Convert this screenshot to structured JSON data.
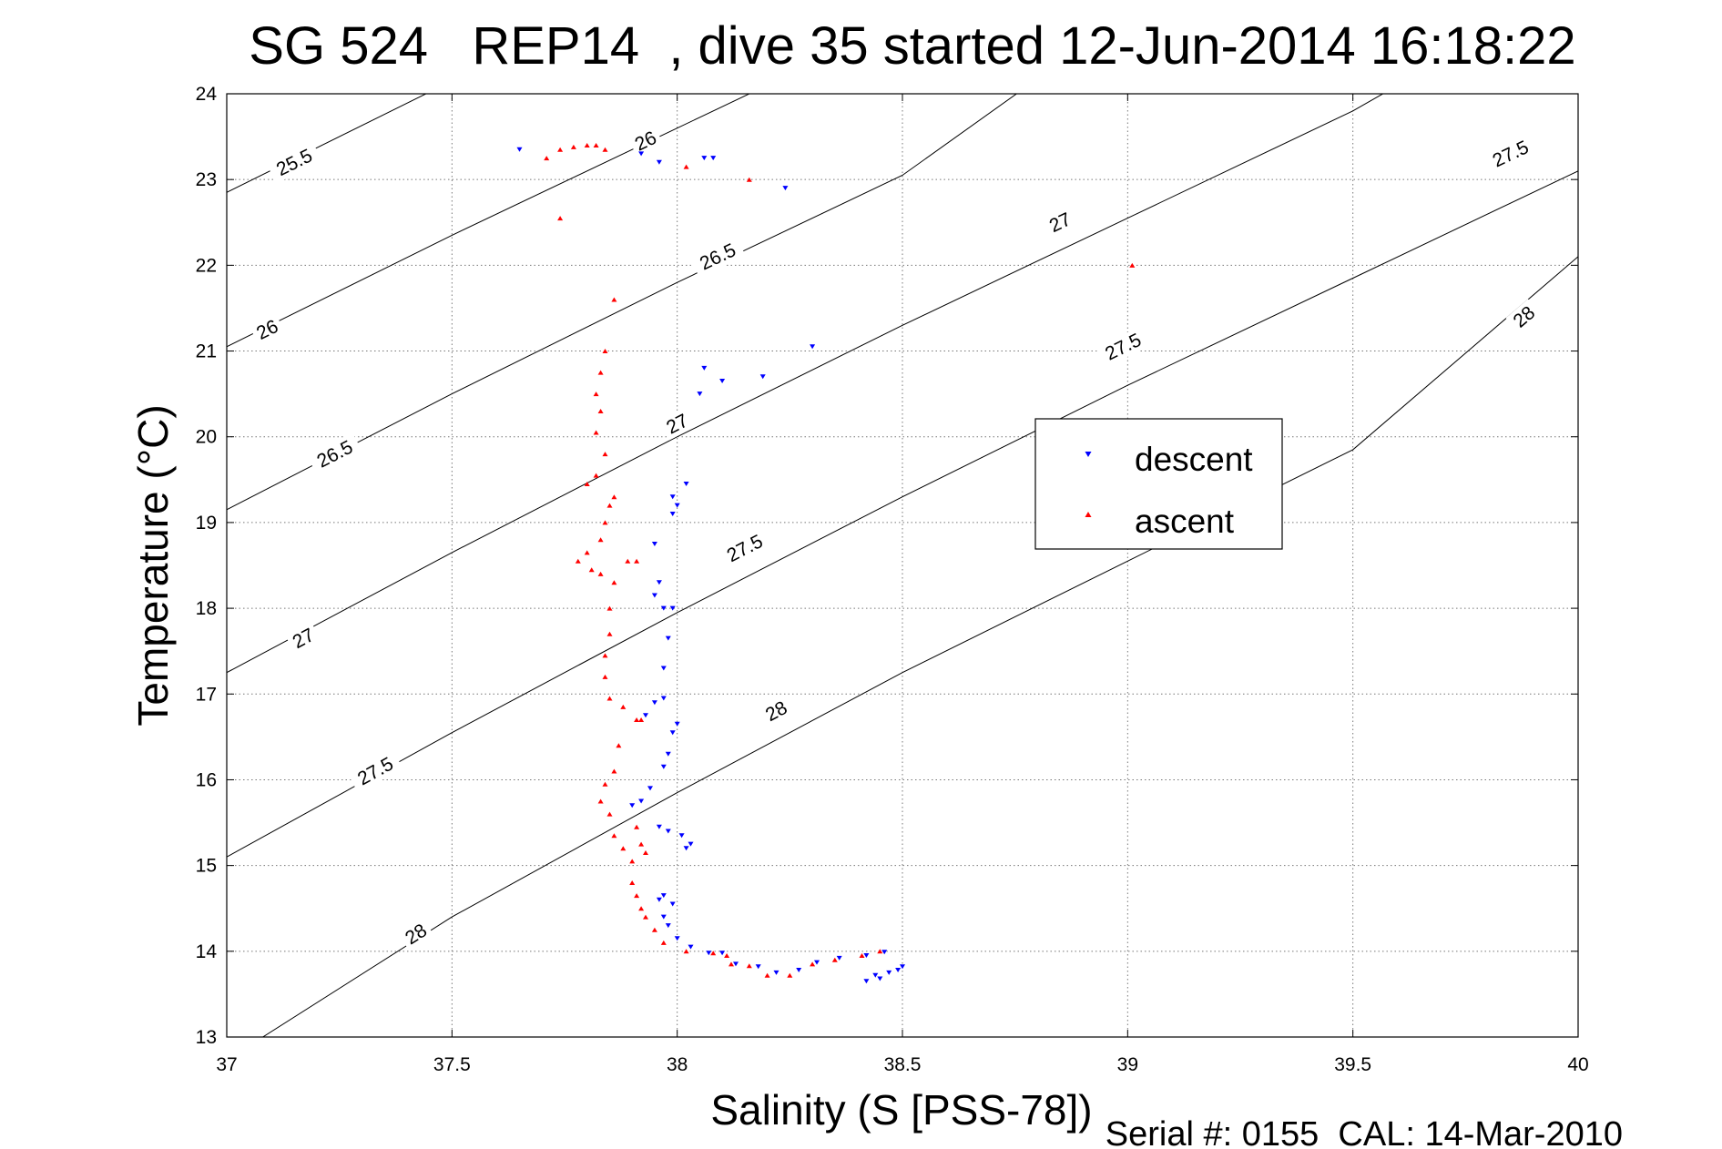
{
  "chart_data": {
    "type": "scatter",
    "title": "SG 524   REP14  , dive 35 started 12-Jun-2014 16:18:22",
    "xlabel": "Salinity (S [PSS-78])",
    "ylabel": "Temperature (°C)",
    "xlim": [
      37,
      40
    ],
    "ylim": [
      13,
      24
    ],
    "xticks": [
      "37",
      "37.5",
      "38",
      "38.5",
      "39",
      "39.5",
      "40"
    ],
    "yticks": [
      "13",
      "14",
      "15",
      "16",
      "17",
      "18",
      "19",
      "20",
      "21",
      "22",
      "23",
      "24"
    ],
    "grid": true,
    "legend_position": "center-right",
    "footnote": "Serial #: 0155  CAL: 14-Mar-2010",
    "contours": [
      {
        "label": "25.5",
        "points": [
          [
            37.0,
            22.85
          ],
          [
            37.5,
            24.15
          ]
        ],
        "label_at": [
          [
            37.15,
            23.2
          ]
        ]
      },
      {
        "label": "26",
        "points": [
          [
            37.0,
            21.05
          ],
          [
            37.5,
            22.35
          ],
          [
            38.0,
            23.6
          ],
          [
            38.2,
            24.1
          ]
        ],
        "label_at": [
          [
            37.09,
            21.25
          ],
          [
            37.93,
            23.45
          ]
        ]
      },
      {
        "label": "26.5",
        "points": [
          [
            37.0,
            19.15
          ],
          [
            37.5,
            20.5
          ],
          [
            38.0,
            21.8
          ],
          [
            38.5,
            23.05
          ],
          [
            38.78,
            24.1
          ]
        ],
        "label_at": [
          [
            37.24,
            19.8
          ],
          [
            38.09,
            22.1
          ]
        ]
      },
      {
        "label": "27",
        "points": [
          [
            37.0,
            17.25
          ],
          [
            37.5,
            18.65
          ],
          [
            38.0,
            20.0
          ],
          [
            38.5,
            21.3
          ],
          [
            39.0,
            22.55
          ],
          [
            39.5,
            23.8
          ],
          [
            39.6,
            24.1
          ]
        ],
        "label_at": [
          [
            37.17,
            17.65
          ],
          [
            38.0,
            20.15
          ],
          [
            38.85,
            22.5
          ]
        ]
      },
      {
        "label": "27.5",
        "points": [
          [
            37.0,
            15.1
          ],
          [
            37.5,
            16.55
          ],
          [
            38.0,
            17.95
          ],
          [
            38.5,
            19.3
          ],
          [
            39.0,
            20.6
          ],
          [
            39.5,
            21.85
          ],
          [
            40.0,
            23.1
          ]
        ],
        "label_at": [
          [
            37.33,
            16.1
          ],
          [
            38.15,
            18.7
          ],
          [
            38.99,
            21.05
          ],
          [
            39.85,
            23.3
          ]
        ]
      },
      {
        "label": "28",
        "points": [
          [
            37.08,
            13.0
          ],
          [
            37.5,
            14.4
          ],
          [
            38.0,
            15.85
          ],
          [
            38.5,
            17.25
          ],
          [
            39.0,
            18.55
          ],
          [
            39.5,
            19.85
          ],
          [
            40.0,
            22.1
          ]
        ],
        "label_at": [
          [
            37.42,
            14.2
          ],
          [
            38.22,
            16.8
          ],
          [
            39.88,
            21.4
          ]
        ]
      }
    ],
    "series": [
      {
        "name": "descent",
        "color": "#0000ff",
        "marker": "triangle-down",
        "points": [
          [
            37.65,
            23.35
          ],
          [
            37.92,
            23.3
          ],
          [
            37.96,
            23.2
          ],
          [
            38.06,
            23.25
          ],
          [
            38.08,
            23.25
          ],
          [
            38.24,
            22.9
          ],
          [
            38.3,
            21.05
          ],
          [
            38.19,
            20.7
          ],
          [
            38.1,
            20.65
          ],
          [
            38.06,
            20.8
          ],
          [
            38.05,
            20.5
          ],
          [
            38.02,
            19.45
          ],
          [
            37.99,
            19.3
          ],
          [
            38.0,
            19.2
          ],
          [
            37.99,
            19.1
          ],
          [
            37.95,
            18.75
          ],
          [
            37.96,
            18.3
          ],
          [
            37.95,
            18.15
          ],
          [
            37.97,
            18.0
          ],
          [
            37.99,
            18.0
          ],
          [
            37.98,
            17.65
          ],
          [
            37.97,
            17.3
          ],
          [
            37.95,
            16.9
          ],
          [
            37.93,
            16.75
          ],
          [
            37.97,
            16.95
          ],
          [
            38.0,
            16.65
          ],
          [
            37.99,
            16.55
          ],
          [
            37.98,
            16.3
          ],
          [
            37.97,
            16.15
          ],
          [
            37.94,
            15.9
          ],
          [
            37.92,
            15.75
          ],
          [
            37.9,
            15.7
          ],
          [
            37.96,
            15.45
          ],
          [
            37.98,
            15.4
          ],
          [
            38.01,
            15.35
          ],
          [
            38.02,
            15.2
          ],
          [
            38.03,
            15.25
          ],
          [
            37.97,
            14.65
          ],
          [
            37.96,
            14.6
          ],
          [
            37.99,
            14.55
          ],
          [
            37.97,
            14.4
          ],
          [
            37.98,
            14.3
          ],
          [
            38.0,
            14.15
          ],
          [
            38.03,
            14.05
          ],
          [
            38.07,
            13.98
          ],
          [
            38.1,
            13.98
          ],
          [
            38.13,
            13.85
          ],
          [
            38.18,
            13.82
          ],
          [
            38.22,
            13.75
          ],
          [
            38.27,
            13.78
          ],
          [
            38.31,
            13.87
          ],
          [
            38.36,
            13.92
          ],
          [
            38.42,
            13.95
          ],
          [
            38.46,
            13.99
          ],
          [
            38.44,
            13.72
          ],
          [
            38.47,
            13.75
          ],
          [
            38.5,
            13.82
          ],
          [
            38.42,
            13.65
          ],
          [
            38.45,
            13.68
          ],
          [
            38.49,
            13.78
          ]
        ]
      },
      {
        "name": "ascent",
        "color": "#ff0000",
        "marker": "triangle-up",
        "points": [
          [
            37.71,
            23.25
          ],
          [
            37.74,
            23.35
          ],
          [
            37.77,
            23.38
          ],
          [
            37.8,
            23.4
          ],
          [
            37.82,
            23.4
          ],
          [
            37.84,
            23.35
          ],
          [
            37.74,
            22.55
          ],
          [
            38.02,
            23.15
          ],
          [
            38.16,
            23.0
          ],
          [
            39.01,
            22.0
          ],
          [
            37.86,
            21.6
          ],
          [
            37.84,
            21.0
          ],
          [
            37.83,
            20.75
          ],
          [
            37.82,
            20.5
          ],
          [
            37.83,
            20.3
          ],
          [
            37.82,
            20.05
          ],
          [
            37.84,
            19.8
          ],
          [
            37.82,
            19.55
          ],
          [
            37.8,
            19.45
          ],
          [
            37.85,
            19.2
          ],
          [
            37.86,
            19.3
          ],
          [
            37.84,
            19.0
          ],
          [
            37.83,
            18.8
          ],
          [
            37.8,
            18.65
          ],
          [
            37.78,
            18.55
          ],
          [
            37.81,
            18.45
          ],
          [
            37.83,
            18.4
          ],
          [
            37.89,
            18.55
          ],
          [
            37.91,
            18.55
          ],
          [
            37.86,
            18.3
          ],
          [
            37.85,
            18.0
          ],
          [
            37.85,
            17.7
          ],
          [
            37.84,
            17.45
          ],
          [
            37.84,
            17.2
          ],
          [
            37.85,
            16.95
          ],
          [
            37.88,
            16.85
          ],
          [
            37.91,
            16.7
          ],
          [
            37.92,
            16.7
          ],
          [
            37.87,
            16.4
          ],
          [
            37.86,
            16.1
          ],
          [
            37.84,
            15.95
          ],
          [
            37.83,
            15.75
          ],
          [
            37.85,
            15.6
          ],
          [
            37.86,
            15.35
          ],
          [
            37.88,
            15.2
          ],
          [
            37.91,
            15.45
          ],
          [
            37.92,
            15.25
          ],
          [
            37.9,
            15.05
          ],
          [
            37.93,
            15.15
          ],
          [
            37.9,
            14.8
          ],
          [
            37.91,
            14.65
          ],
          [
            37.92,
            14.5
          ],
          [
            37.93,
            14.4
          ],
          [
            37.95,
            14.25
          ],
          [
            37.97,
            14.1
          ],
          [
            38.02,
            14.0
          ],
          [
            38.08,
            13.98
          ],
          [
            38.11,
            13.95
          ],
          [
            38.12,
            13.85
          ],
          [
            38.16,
            13.83
          ],
          [
            38.2,
            13.72
          ],
          [
            38.25,
            13.72
          ],
          [
            38.3,
            13.85
          ],
          [
            38.35,
            13.9
          ],
          [
            38.41,
            13.95
          ],
          [
            38.45,
            14.0
          ]
        ]
      }
    ]
  }
}
